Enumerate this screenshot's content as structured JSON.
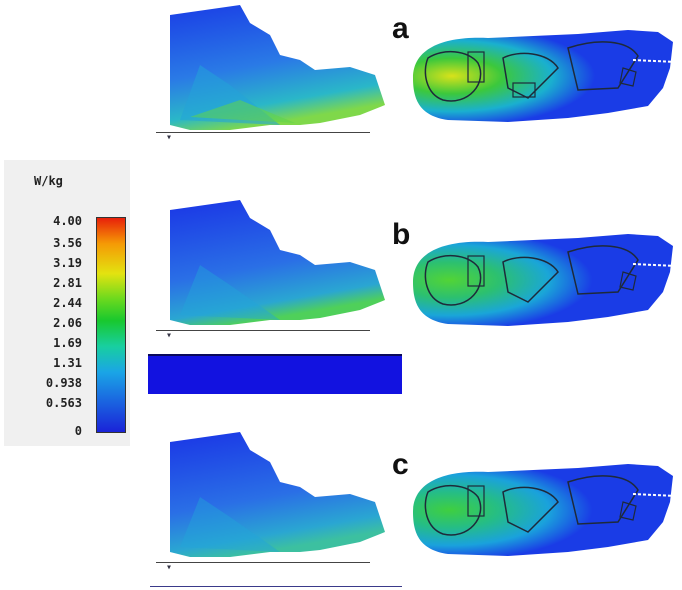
{
  "legend": {
    "unit": "W/kg",
    "ticks": [
      "4.00",
      "3.56",
      "3.19",
      "2.81",
      "2.44",
      "2.06",
      "1.69",
      "1.31",
      "0.938",
      "0.563",
      "0"
    ],
    "gradient_colors": [
      "#e8200a",
      "#f59a05",
      "#e3e310",
      "#6ad91e",
      "#18c82e",
      "#18cfa0",
      "#1aa5e6",
      "#1a63e0",
      "#1a23d8"
    ]
  },
  "panels": [
    {
      "letter": "a"
    },
    {
      "letter": "b"
    },
    {
      "letter": "c"
    }
  ],
  "colors": {
    "background": "#ffffff",
    "deep_blue": "#1a1ee6",
    "mid_blue": "#2d6ae8",
    "outline": "#1e2a3a"
  },
  "legend_icon": "w-per-kg-colorbar"
}
